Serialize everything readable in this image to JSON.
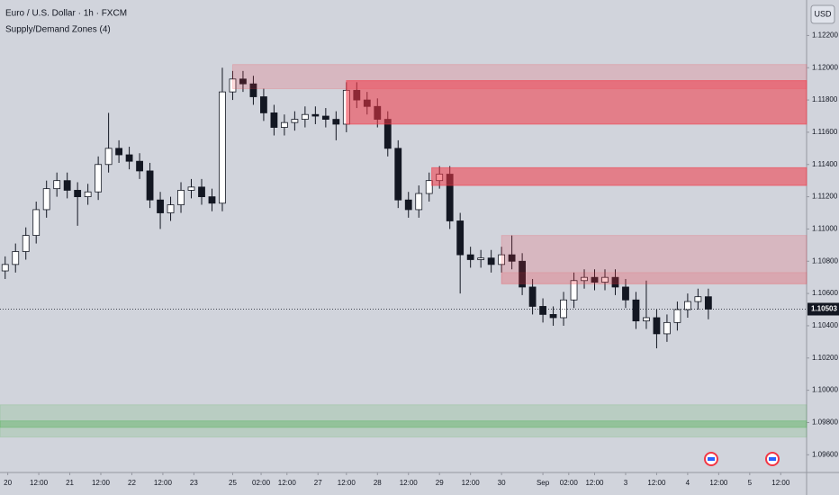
{
  "chart_data": {
    "type": "candlestick",
    "title": "Euro / U.S. Dollar · 1h · FXCM",
    "subtitle": "Supply/Demand Zones (4)",
    "currency": "USD",
    "up_color": "#ffffff",
    "down_color": "#131722",
    "wick_color": "#131722",
    "x": [
      2,
      6,
      10,
      14,
      18,
      22,
      26,
      30,
      34,
      38,
      42,
      46,
      50,
      54,
      58,
      62,
      66,
      70,
      74,
      78,
      82,
      86,
      90,
      94,
      98,
      102,
      106,
      110,
      114,
      118,
      122,
      126,
      130,
      134,
      138,
      142,
      146,
      150,
      154,
      158,
      162,
      166,
      170,
      174,
      178,
      182,
      186,
      190,
      194,
      198,
      202,
      206,
      210,
      214,
      218,
      222,
      226,
      230,
      234,
      238,
      242,
      246,
      250,
      254,
      258,
      262,
      266,
      270,
      274
    ],
    "open": [
      1.1074,
      1.1078,
      1.1086,
      1.1096,
      1.1112,
      1.1125,
      1.113,
      1.1124,
      1.112,
      1.1123,
      1.114,
      1.115,
      1.1146,
      1.1142,
      1.1136,
      1.1118,
      1.111,
      1.1115,
      1.1124,
      1.1126,
      1.112,
      1.1116,
      1.1185,
      1.1193,
      1.119,
      1.1182,
      1.1172,
      1.1163,
      1.1166,
      1.1168,
      1.1171,
      1.117,
      1.1168,
      1.1165,
      1.1186,
      1.118,
      1.1176,
      1.1168,
      1.115,
      1.1118,
      1.1112,
      1.1122,
      1.113,
      1.1134,
      1.1105,
      1.1084,
      1.1081,
      1.1082,
      1.1078,
      1.1084,
      1.108,
      1.1064,
      1.1052,
      1.1047,
      1.1045,
      1.1056,
      1.1068,
      1.107,
      1.1067,
      1.107,
      1.1064,
      1.1056,
      1.1043,
      1.1045,
      1.1035,
      1.1042,
      1.105,
      1.1055,
      1.1058
    ],
    "high": [
      1.1083,
      1.1091,
      1.1101,
      1.1117,
      1.113,
      1.1135,
      1.1135,
      1.1129,
      1.1128,
      1.1145,
      1.1172,
      1.1155,
      1.1151,
      1.1147,
      1.1141,
      1.1123,
      1.112,
      1.1129,
      1.1131,
      1.1131,
      1.1125,
      1.12,
      1.1198,
      1.1198,
      1.1195,
      1.1187,
      1.1177,
      1.1171,
      1.1173,
      1.1176,
      1.1176,
      1.1175,
      1.1173,
      1.1191,
      1.1191,
      1.1185,
      1.1181,
      1.1173,
      1.1155,
      1.1123,
      1.1127,
      1.1135,
      1.1139,
      1.1139,
      1.111,
      1.1089,
      1.1087,
      1.1087,
      1.1089,
      1.1096,
      1.1085,
      1.1069,
      1.1057,
      1.1052,
      1.1061,
      1.1073,
      1.1075,
      1.1075,
      1.1075,
      1.1075,
      1.1069,
      1.1061,
      1.1068,
      1.105,
      1.1047,
      1.1055,
      1.106,
      1.1063,
      1.1063
    ],
    "low": [
      1.1069,
      1.1073,
      1.1081,
      1.1091,
      1.1107,
      1.112,
      1.1119,
      1.1102,
      1.1115,
      1.1118,
      1.1135,
      1.1141,
      1.1137,
      1.1131,
      1.1113,
      1.11,
      1.1105,
      1.111,
      1.1119,
      1.1115,
      1.1111,
      1.1111,
      1.118,
      1.1185,
      1.1177,
      1.1167,
      1.1158,
      1.1158,
      1.1161,
      1.1163,
      1.1165,
      1.1163,
      1.1155,
      1.116,
      1.1175,
      1.1171,
      1.1163,
      1.1145,
      1.1113,
      1.1107,
      1.1107,
      1.1117,
      1.1125,
      1.11,
      1.106,
      1.1076,
      1.1076,
      1.1073,
      1.1073,
      1.1075,
      1.1059,
      1.1047,
      1.1042,
      1.104,
      1.104,
      1.1051,
      1.1063,
      1.1062,
      1.1062,
      1.1059,
      1.1051,
      1.1038,
      1.1038,
      1.1026,
      1.103,
      1.1037,
      1.1045,
      1.105,
      1.1044
    ],
    "close": [
      1.1078,
      1.1086,
      1.1096,
      1.1112,
      1.1125,
      1.113,
      1.1124,
      1.112,
      1.1123,
      1.114,
      1.115,
      1.1146,
      1.1142,
      1.1136,
      1.1118,
      1.111,
      1.1115,
      1.1124,
      1.1126,
      1.112,
      1.1116,
      1.1185,
      1.1193,
      1.119,
      1.1182,
      1.1172,
      1.1163,
      1.1166,
      1.1168,
      1.1171,
      1.117,
      1.1168,
      1.1165,
      1.1186,
      1.118,
      1.1176,
      1.1168,
      1.115,
      1.1118,
      1.1112,
      1.1122,
      1.113,
      1.1134,
      1.1105,
      1.1084,
      1.1081,
      1.1082,
      1.1078,
      1.1084,
      1.108,
      1.1064,
      1.1052,
      1.1047,
      1.1045,
      1.1056,
      1.1068,
      1.107,
      1.1067,
      1.107,
      1.1064,
      1.1056,
      1.1043,
      1.1045,
      1.1035,
      1.1042,
      1.105,
      1.1055,
      1.1058,
      1.10503
    ],
    "xlim": [
      0,
      312
    ],
    "ylim": [
      1.0949,
      1.1242
    ],
    "xticks": [
      {
        "value": 3,
        "label": "20"
      },
      {
        "value": 15,
        "label": "12:00"
      },
      {
        "value": 27,
        "label": "21"
      },
      {
        "value": 39,
        "label": "12:00"
      },
      {
        "value": 51,
        "label": "22"
      },
      {
        "value": 63,
        "label": "12:00"
      },
      {
        "value": 75,
        "label": "23"
      },
      {
        "value": 90,
        "label": "25"
      },
      {
        "value": 101,
        "label": "02:00"
      },
      {
        "value": 111,
        "label": "12:00"
      },
      {
        "value": 123,
        "label": "27"
      },
      {
        "value": 134,
        "label": "12:00"
      },
      {
        "value": 146,
        "label": "28"
      },
      {
        "value": 158,
        "label": "12:00"
      },
      {
        "value": 170,
        "label": "29"
      },
      {
        "value": 182,
        "label": "12:00"
      },
      {
        "value": 194,
        "label": "30"
      },
      {
        "value": 210,
        "label": "Sep"
      },
      {
        "value": 220,
        "label": "02:00"
      },
      {
        "value": 230,
        "label": "12:00"
      },
      {
        "value": 242,
        "label": "3"
      },
      {
        "value": 254,
        "label": "12:00"
      },
      {
        "value": 266,
        "label": "4"
      },
      {
        "value": 278,
        "label": "12:00"
      },
      {
        "value": 290,
        "label": "5"
      },
      {
        "value": 302,
        "label": "12:00"
      }
    ],
    "yticks": [
      {
        "value": 1.122,
        "label": "1.12200"
      },
      {
        "value": 1.12,
        "label": "1.12000"
      },
      {
        "value": 1.118,
        "label": "1.11800"
      },
      {
        "value": 1.116,
        "label": "1.11600"
      },
      {
        "value": 1.114,
        "label": "1.11400"
      },
      {
        "value": 1.112,
        "label": "1.11200"
      },
      {
        "value": 1.11,
        "label": "1.11000"
      },
      {
        "value": 1.108,
        "label": "1.10800"
      },
      {
        "value": 1.106,
        "label": "1.10600"
      },
      {
        "value": 1.104,
        "label": "1.10400"
      },
      {
        "value": 1.102,
        "label": "1.10200"
      },
      {
        "value": 1.1,
        "label": "1.10000"
      },
      {
        "value": 1.098,
        "label": "1.09800"
      },
      {
        "value": 1.096,
        "label": "1.09600"
      }
    ],
    "last_price": {
      "value": 1.10503,
      "label": "1.10503"
    },
    "zones": [
      {
        "start": 90,
        "top": 1.1202,
        "bottom": 1.1187,
        "color": "rgba(242,54,69,0.18)"
      },
      {
        "start": 134,
        "top": 1.1192,
        "bottom": 1.1165,
        "color": "rgba(242,54,69,0.55)"
      },
      {
        "start": 167,
        "top": 1.1138,
        "bottom": 1.1127,
        "color": "rgba(242,54,69,0.55)"
      },
      {
        "start": 194,
        "top": 1.1096,
        "bottom": 1.1066,
        "color": "rgba(242,54,69,0.18)"
      },
      {
        "start": 194,
        "top": 1.1073,
        "bottom": 1.1066,
        "color": "rgba(242,54,69,0.12)"
      },
      {
        "start": 0,
        "top": 1.0991,
        "bottom": 1.0971,
        "color": "rgba(76,175,80,0.18)"
      },
      {
        "start": 0,
        "top": 1.0981,
        "bottom": 1.0977,
        "color": "rgba(76,175,80,0.35)"
      }
    ]
  }
}
